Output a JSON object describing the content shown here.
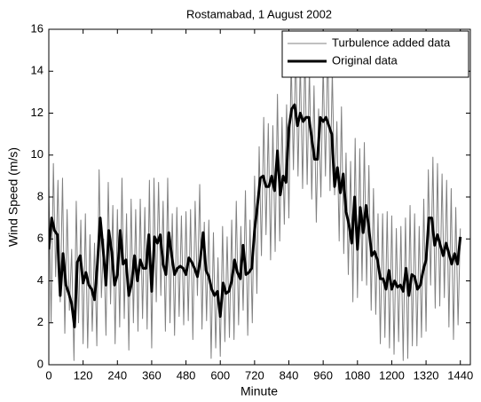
{
  "chart_data": {
    "type": "line",
    "title": "Rostamabad, 1 August 2002",
    "x_label": "Minute",
    "y_label": "Wind Speed (m/s)",
    "xlim": [
      0,
      1475
    ],
    "ylim": [
      0,
      16
    ],
    "xticks": [
      0,
      120,
      240,
      360,
      480,
      600,
      720,
      840,
      960,
      1080,
      1200,
      1320,
      1440
    ],
    "yticks": [
      0,
      2,
      4,
      6,
      8,
      10,
      12,
      14,
      16
    ],
    "legend": "upper right",
    "series": [
      {
        "name": "Turbulence added data",
        "color": "#808080",
        "width": 1,
        "x": [
          0,
          8,
          16,
          24,
          32,
          40,
          48,
          56,
          64,
          72,
          80,
          88,
          96,
          104,
          112,
          120,
          128,
          136,
          144,
          152,
          160,
          168,
          176,
          184,
          192,
          200,
          208,
          216,
          224,
          232,
          240,
          248,
          256,
          264,
          272,
          280,
          288,
          296,
          304,
          312,
          320,
          328,
          336,
          344,
          352,
          360,
          368,
          376,
          384,
          392,
          400,
          408,
          416,
          424,
          432,
          440,
          448,
          456,
          464,
          472,
          480,
          488,
          496,
          504,
          512,
          520,
          528,
          536,
          544,
          552,
          560,
          568,
          576,
          584,
          592,
          600,
          608,
          616,
          624,
          632,
          640,
          648,
          656,
          664,
          672,
          680,
          688,
          696,
          704,
          712,
          720,
          728,
          736,
          744,
          752,
          760,
          768,
          776,
          784,
          792,
          800,
          808,
          816,
          824,
          832,
          840,
          848,
          856,
          864,
          872,
          880,
          888,
          896,
          904,
          912,
          920,
          928,
          936,
          944,
          952,
          960,
          968,
          976,
          984,
          992,
          1000,
          1008,
          1016,
          1024,
          1032,
          1040,
          1048,
          1056,
          1064,
          1072,
          1080,
          1088,
          1096,
          1104,
          1112,
          1120,
          1128,
          1136,
          1144,
          1152,
          1160,
          1168,
          1176,
          1184,
          1192,
          1200,
          1208,
          1216,
          1224,
          1232,
          1240,
          1248,
          1256,
          1264,
          1272,
          1280,
          1288,
          1296,
          1304,
          1312,
          1320,
          1328,
          1336,
          1344,
          1352,
          1360,
          1368,
          1376,
          1384,
          1392,
          1400,
          1408,
          1416,
          1424,
          1432,
          1440
        ],
        "values": [
          8.5,
          2.0,
          9.6,
          4.2,
          8.8,
          3.0,
          8.9,
          1.5,
          7.4,
          2.6,
          5.5,
          0.2,
          7.8,
          2.0,
          6.9,
          1.0,
          7.2,
          0.8,
          6.2,
          1.6,
          5.8,
          0.9,
          9.3,
          3.2,
          6.0,
          1.4,
          8.7,
          2.9,
          7.6,
          1.0,
          7.4,
          1.8,
          8.9,
          2.2,
          7.2,
          0.7,
          7.9,
          2.0,
          7.4,
          1.6,
          7.9,
          2.2,
          7.5,
          1.7,
          8.8,
          0.8,
          8.9,
          3.0,
          8.7,
          3.3,
          7.8,
          1.6,
          8.9,
          2.0,
          7.2,
          1.4,
          7.5,
          2.3,
          7.1,
          1.9,
          7.3,
          2.1,
          7.4,
          1.2,
          7.8,
          3.3,
          8.6,
          1.7,
          6.8,
          2.1,
          6.9,
          0.3,
          6.3,
          0.8,
          5.1,
          0.4,
          6.6,
          1.1,
          6.1,
          1.3,
          6.9,
          1.2,
          7.8,
          1.9,
          6.6,
          2.6,
          8.3,
          1.4,
          6.9,
          2.0,
          9.0,
          3.4,
          10.4,
          5.2,
          11.8,
          6.2,
          11.5,
          5.0,
          11.4,
          5.4,
          12.9,
          5.9,
          11.8,
          6.7,
          12.4,
          7.0,
          14.6,
          9.3,
          15.2,
          9.0,
          14.5,
          8.4,
          15.0,
          8.6,
          14.2,
          7.9,
          13.3,
          6.8,
          12.2,
          8.0,
          14.4,
          9.0,
          15.3,
          8.3,
          14.0,
          8.1,
          11.6,
          5.9,
          12.3,
          5.3,
          10.1,
          4.3,
          9.7,
          3.0,
          10.8,
          3.2,
          10.3,
          4.0,
          10.6,
          3.8,
          9.5,
          2.6,
          8.4,
          2.4,
          7.2,
          1.0,
          7.2,
          1.3,
          7.3,
          0.8,
          7.1,
          0.5,
          6.5,
          1.1,
          6.6,
          0.2,
          7.0,
          0.3,
          7.6,
          0.9,
          7.2,
          0.9,
          6.6,
          1.3,
          7.9,
          1.6,
          9.3,
          3.8,
          9.9,
          2.7,
          9.6,
          2.8,
          9.1,
          3.2,
          8.8,
          1.8,
          8.4,
          1.2,
          7.5,
          1.9,
          6.5
        ]
      },
      {
        "name": "Original data",
        "color": "#000000",
        "width": 3,
        "x": [
          0,
          10,
          20,
          30,
          40,
          50,
          60,
          70,
          80,
          90,
          100,
          110,
          120,
          130,
          140,
          150,
          160,
          170,
          180,
          190,
          200,
          210,
          220,
          230,
          240,
          250,
          260,
          270,
          280,
          290,
          300,
          310,
          320,
          330,
          340,
          350,
          360,
          370,
          380,
          390,
          400,
          410,
          420,
          430,
          440,
          450,
          460,
          470,
          480,
          490,
          500,
          510,
          520,
          530,
          540,
          550,
          560,
          570,
          580,
          590,
          600,
          610,
          620,
          630,
          640,
          650,
          660,
          670,
          680,
          690,
          700,
          710,
          720,
          730,
          740,
          750,
          760,
          770,
          780,
          790,
          800,
          810,
          820,
          830,
          840,
          850,
          860,
          870,
          880,
          890,
          900,
          910,
          920,
          930,
          940,
          950,
          960,
          970,
          980,
          990,
          1000,
          1010,
          1020,
          1030,
          1040,
          1050,
          1060,
          1070,
          1080,
          1090,
          1100,
          1110,
          1120,
          1130,
          1140,
          1150,
          1160,
          1170,
          1180,
          1190,
          1200,
          1210,
          1220,
          1230,
          1240,
          1250,
          1260,
          1270,
          1280,
          1290,
          1300,
          1310,
          1320,
          1330,
          1340,
          1350,
          1360,
          1370,
          1380,
          1390,
          1400,
          1410,
          1420,
          1430,
          1440
        ],
        "values": [
          5.5,
          7,
          6.4,
          6.2,
          3.3,
          5.3,
          3.8,
          3.4,
          2.9,
          1.8,
          4.9,
          5.2,
          3.9,
          4.4,
          3.8,
          3.6,
          3.1,
          4.8,
          7,
          5.5,
          3.8,
          6.4,
          5.4,
          3.8,
          4.3,
          6.4,
          4.8,
          5.0,
          3.3,
          3.9,
          5.2,
          4,
          5,
          4.6,
          4.6,
          6.2,
          3.5,
          6.1,
          5.8,
          6.2,
          4.8,
          4.3,
          6.3,
          5.2,
          4.3,
          4.6,
          4.7,
          4.6,
          4.3,
          5.1,
          4.9,
          4.6,
          4.2,
          5.0,
          6.3,
          4.5,
          4.2,
          3.6,
          3.3,
          3.5,
          2.3,
          3.9,
          3.4,
          3.5,
          4.0,
          5.0,
          4.4,
          4.1,
          5.7,
          4.3,
          4.4,
          4.6,
          6.4,
          7.6,
          8.9,
          9.0,
          8.5,
          8.5,
          9,
          8.3,
          10.2,
          8.1,
          9,
          8.7,
          11.3,
          12.2,
          12.4,
          11.4,
          12,
          11.6,
          11.8,
          11.8,
          10.8,
          9.8,
          9.8,
          11.8,
          11.6,
          11.8,
          11.4,
          11,
          8.5,
          9.4,
          8.2,
          9.1,
          7.3,
          6.7,
          5.8,
          8,
          5.5,
          7.5,
          6.3,
          7.6,
          6.5,
          5.2,
          5.4,
          5,
          4.1,
          4.1,
          3.6,
          4.5,
          3.6,
          4,
          3.7,
          3.8,
          3.5,
          4.6,
          3.3,
          4.3,
          4.2,
          3.6,
          3.8,
          4.5,
          5.0,
          7,
          7,
          5.7,
          6.2,
          5.7,
          5.2,
          5.8,
          5.3,
          4.8,
          5.3,
          4.8,
          6.1
        ]
      }
    ]
  }
}
